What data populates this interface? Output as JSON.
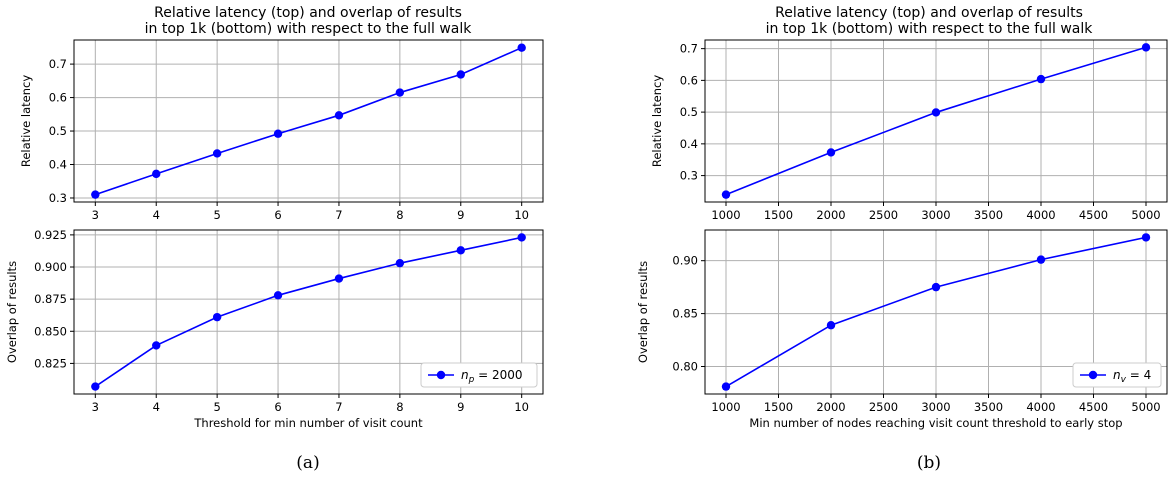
{
  "colors": {
    "series": "#0000ff",
    "grid": "#b0b0b0",
    "axis": "#000000"
  },
  "captions": [
    "(a)",
    "(b)"
  ],
  "chart_data": [
    {
      "type": "line",
      "title_line1": "Relative latency (top) and overlap of results",
      "title_line2": "in top 1k (bottom) with respect to the full walk",
      "ylabel": "Relative latency",
      "xlabel": "",
      "x": [
        3,
        4,
        5,
        6,
        7,
        8,
        9,
        10
      ],
      "y": [
        0.31,
        0.372,
        0.433,
        0.492,
        0.547,
        0.615,
        0.669,
        0.749
      ],
      "xticks": [
        3,
        4,
        5,
        6,
        7,
        8,
        9,
        10
      ],
      "xticklabels": [
        "3",
        "4",
        "5",
        "6",
        "7",
        "8",
        "9",
        "10"
      ],
      "yticks": [
        0.3,
        0.4,
        0.5,
        0.6,
        0.7
      ],
      "yticklabels": [
        "0.3",
        "0.4",
        "0.5",
        "0.6",
        "0.7"
      ],
      "xlim": [
        2.65,
        10.35
      ],
      "ylim": [
        0.288,
        0.772
      ],
      "grid": true
    },
    {
      "type": "line",
      "ylabel": "Overlap of results",
      "xlabel": "Threshold for min number of visit count",
      "x": [
        3,
        4,
        5,
        6,
        7,
        8,
        9,
        10
      ],
      "y": [
        0.807,
        0.839,
        0.861,
        0.878,
        0.891,
        0.903,
        0.913,
        0.923
      ],
      "xticks": [
        3,
        4,
        5,
        6,
        7,
        8,
        9,
        10
      ],
      "xticklabels": [
        "3",
        "4",
        "5",
        "6",
        "7",
        "8",
        "9",
        "10"
      ],
      "yticks": [
        0.825,
        0.85,
        0.875,
        0.9,
        0.925
      ],
      "yticklabels": [
        "0.825",
        "0.850",
        "0.875",
        "0.900",
        "0.925"
      ],
      "xlim": [
        2.65,
        10.35
      ],
      "ylim": [
        0.8012,
        0.9288
      ],
      "grid": true,
      "legend": {
        "label": "n",
        "sub": "p",
        "value": " = 2000",
        "placement": "lower-right"
      }
    },
    {
      "type": "line",
      "title_line1": "Relative latency (top) and overlap of results",
      "title_line2": "in top 1k (bottom) with respect to the full walk",
      "ylabel": "Relative latency",
      "xlabel": "",
      "x": [
        1000,
        2000,
        3000,
        4000,
        5000
      ],
      "y": [
        0.24,
        0.373,
        0.499,
        0.604,
        0.704
      ],
      "xticks": [
        1000,
        1500,
        2000,
        2500,
        3000,
        3500,
        4000,
        4500,
        5000
      ],
      "xticklabels": [
        "1000",
        "1500",
        "2000",
        "2500",
        "3000",
        "3500",
        "4000",
        "4500",
        "5000"
      ],
      "yticks": [
        0.3,
        0.4,
        0.5,
        0.6,
        0.7
      ],
      "yticklabels": [
        "0.3",
        "0.4",
        "0.5",
        "0.6",
        "0.7"
      ],
      "xlim": [
        800,
        5200
      ],
      "ylim": [
        0.2168,
        0.7272
      ],
      "grid": true
    },
    {
      "type": "line",
      "ylabel": "Overlap of results",
      "xlabel": "Min number of nodes reaching visit count threshold to early stop",
      "x": [
        1000,
        2000,
        3000,
        4000,
        5000
      ],
      "y": [
        0.781,
        0.839,
        0.875,
        0.901,
        0.922
      ],
      "xticks": [
        1000,
        1500,
        2000,
        2500,
        3000,
        3500,
        4000,
        4500,
        5000
      ],
      "xticklabels": [
        "1000",
        "1500",
        "2000",
        "2500",
        "3000",
        "3500",
        "4000",
        "4500",
        "5000"
      ],
      "yticks": [
        0.8,
        0.85,
        0.9
      ],
      "yticklabels": [
        "0.80",
        "0.85",
        "0.90"
      ],
      "xlim": [
        800,
        5200
      ],
      "ylim": [
        0.774,
        0.929
      ],
      "grid": true,
      "legend": {
        "label": "n",
        "sub": "v",
        "value": " = 4",
        "placement": "lower-right"
      }
    }
  ]
}
